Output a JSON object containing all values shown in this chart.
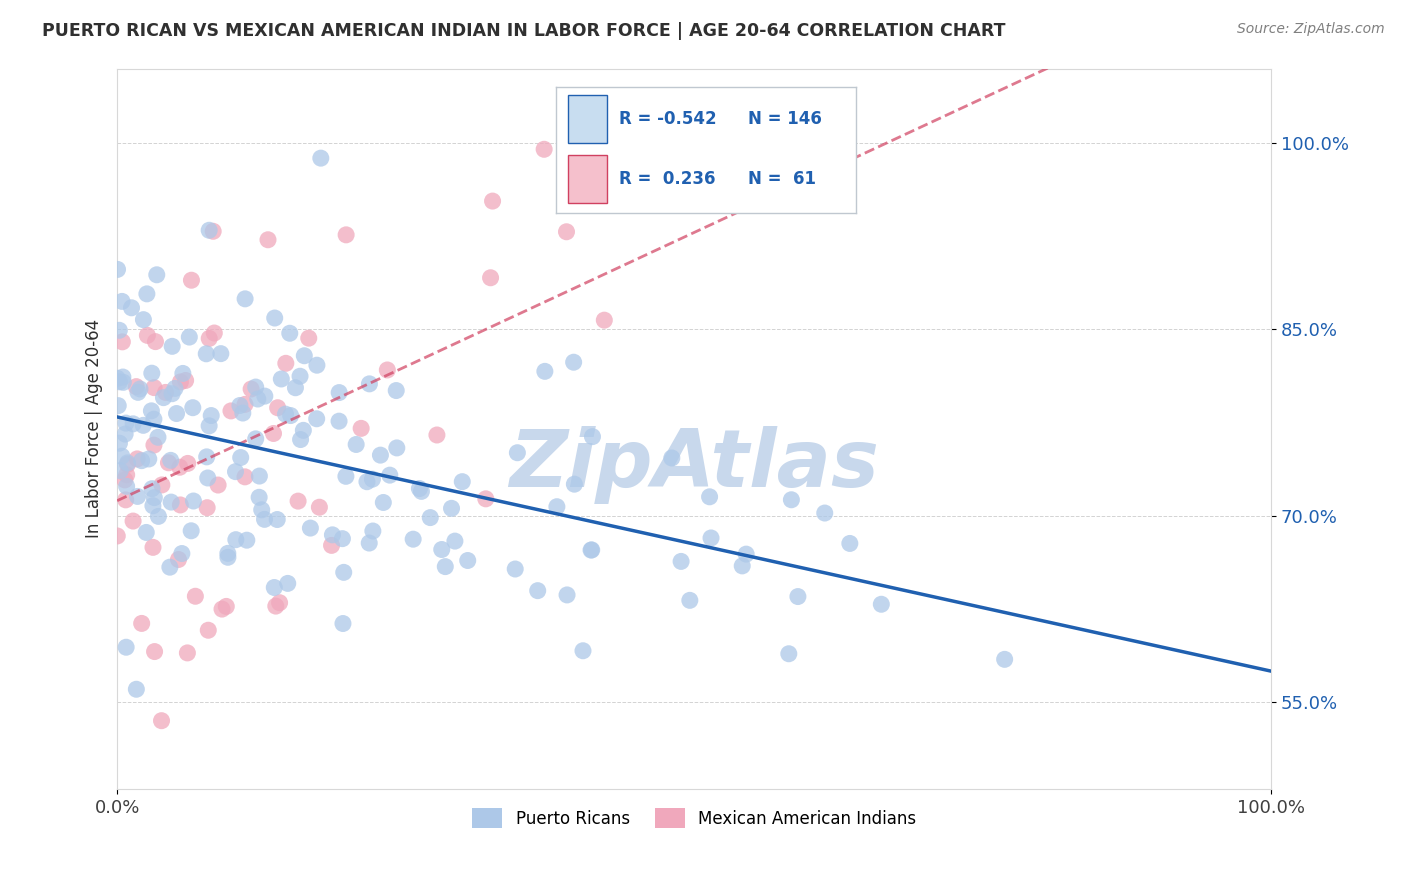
{
  "title": "PUERTO RICAN VS MEXICAN AMERICAN INDIAN IN LABOR FORCE | AGE 20-64 CORRELATION CHART",
  "source_text": "Source: ZipAtlas.com",
  "ylabel": "In Labor Force | Age 20-64",
  "xlim": [
    0.0,
    1.0
  ],
  "ylim": [
    0.48,
    1.06
  ],
  "x_ticks": [
    0.0,
    1.0
  ],
  "x_tick_labels": [
    "0.0%",
    "100.0%"
  ],
  "y_ticks": [
    0.55,
    0.7,
    0.85,
    1.0
  ],
  "y_tick_labels": [
    "55.0%",
    "70.0%",
    "85.0%",
    "100.0%"
  ],
  "legend_r_blue": "-0.542",
  "legend_n_blue": "146",
  "legend_r_pink": "0.236",
  "legend_n_pink": "61",
  "blue_color": "#adc8e8",
  "pink_color": "#f0a8bc",
  "trendline_blue_color": "#2060b0",
  "trendline_pink_color": "#d04060",
  "background_color": "#ffffff",
  "watermark_text": "ZipAtlas",
  "watermark_color": "#c8d8ec",
  "title_color": "#303030",
  "source_color": "#808080",
  "n_blue": 146,
  "n_pink": 61,
  "blue_r": -0.542,
  "pink_r": 0.236,
  "legend_blue_bg": "#c8ddf0",
  "legend_pink_bg": "#f5c0cc"
}
